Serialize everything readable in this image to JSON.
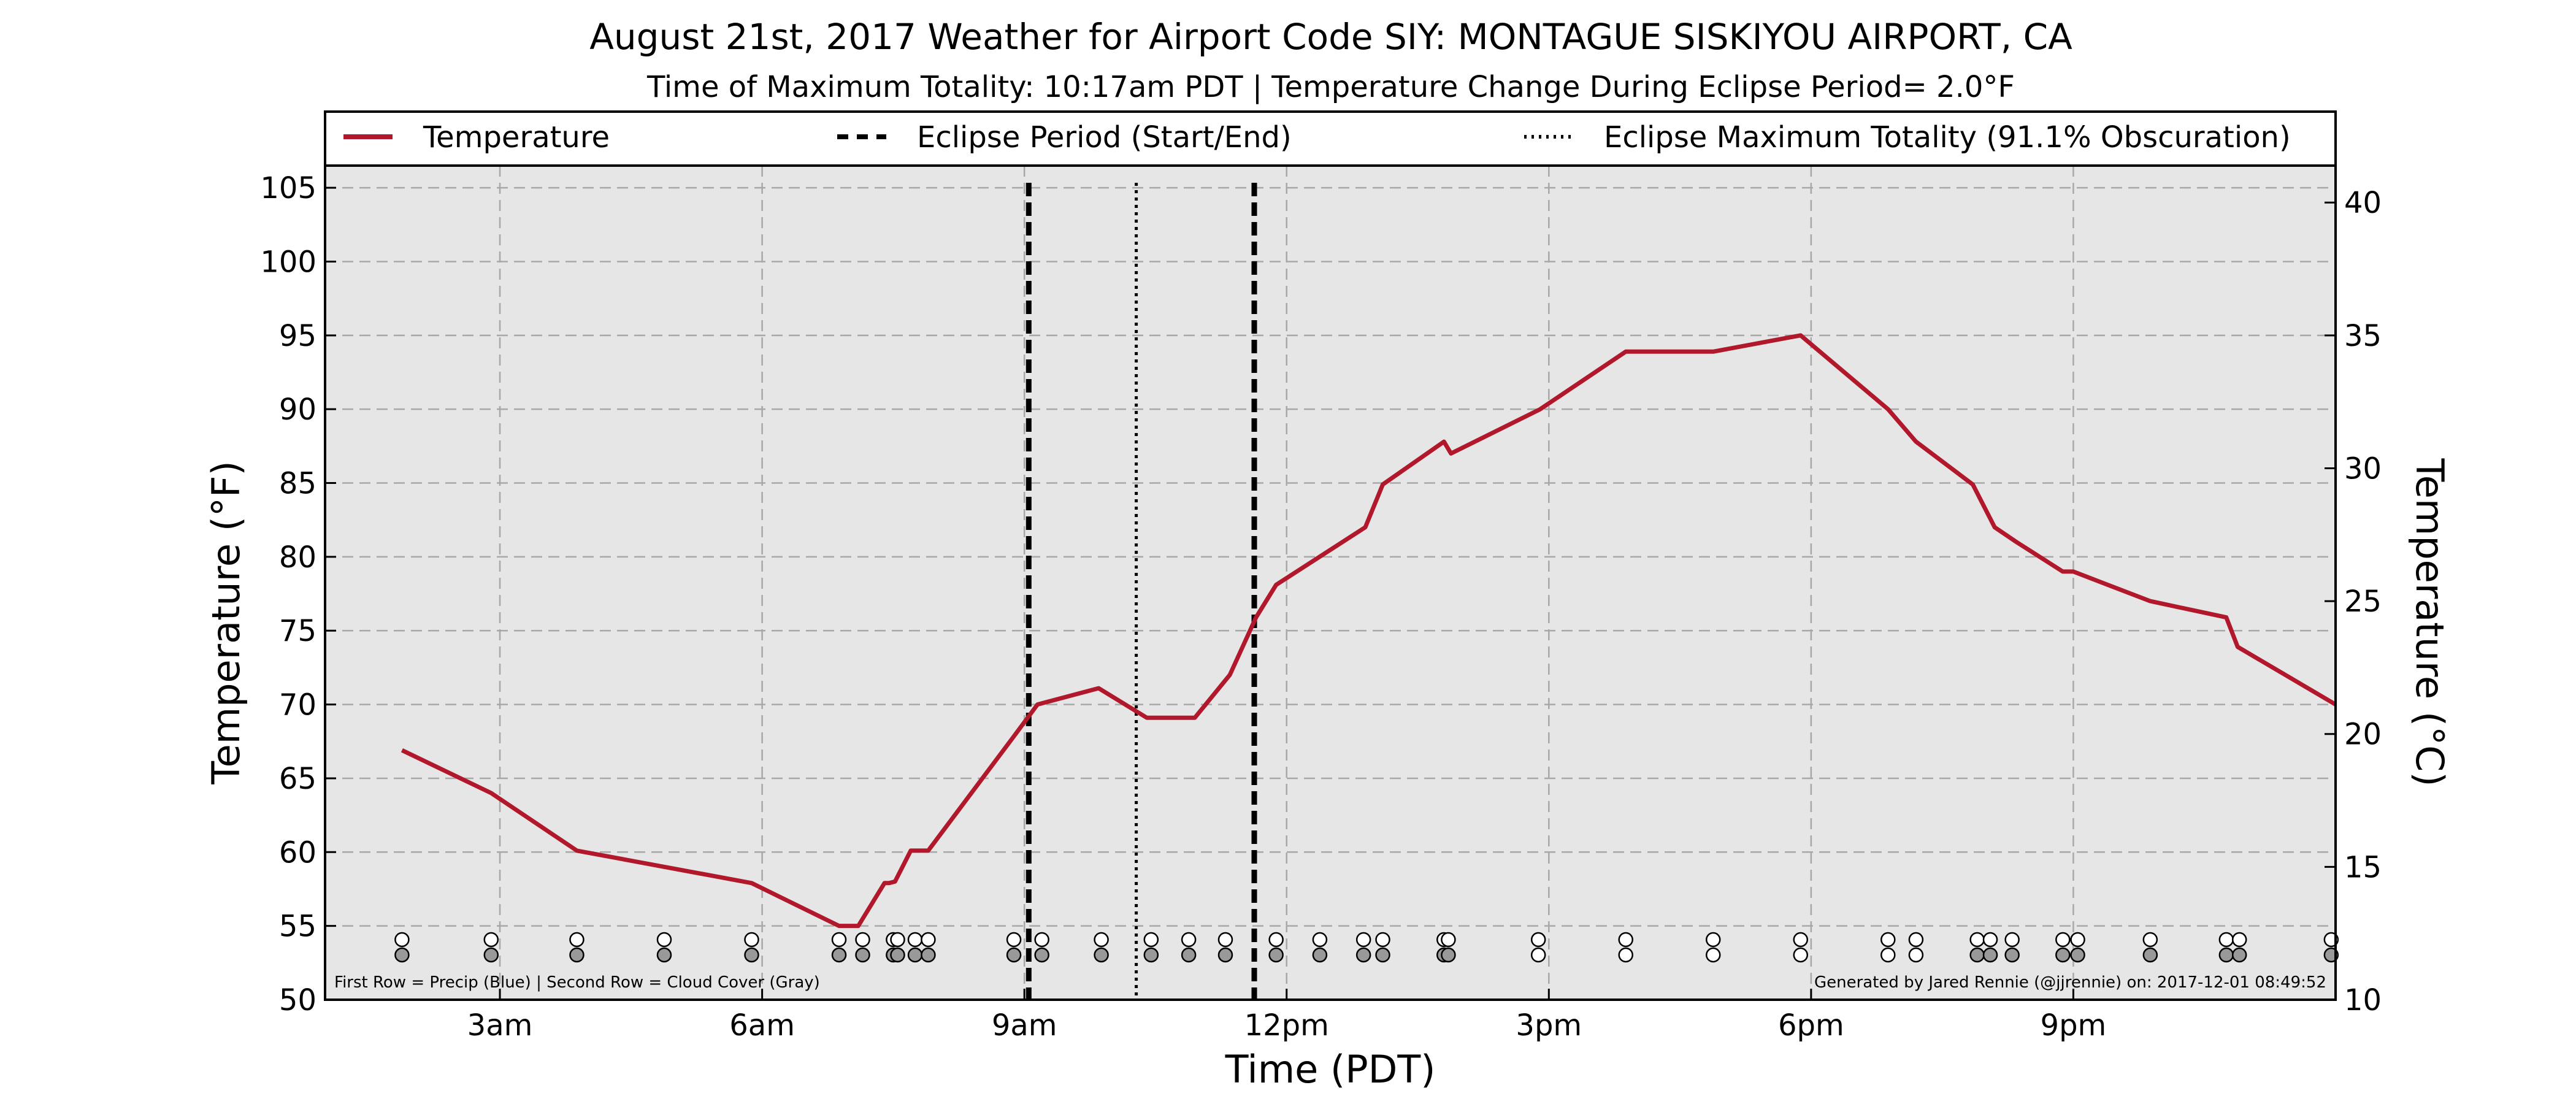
{
  "chart_data": {
    "type": "line",
    "title": "August 21st, 2017 Weather for Airport Code SIY: MONTAGUE SISKIYOU AIRPORT, CA",
    "subtitle": "Time of Maximum Totality: 10:17am PDT | Temperature Change During Eclipse Period= 2.0°F",
    "xlabel": "Time (PDT)",
    "ylabel": "Temperature (°F)",
    "ylabel_right": "Temperature (°C)",
    "xlim": [
      1.0,
      24.0
    ],
    "ylim": [
      50,
      106.5
    ],
    "ylim_right_c": [
      10,
      41.39
    ],
    "xticks": [
      {
        "value": 3,
        "label": "3am"
      },
      {
        "value": 6,
        "label": "6am"
      },
      {
        "value": 9,
        "label": "9am"
      },
      {
        "value": 12,
        "label": "12pm"
      },
      {
        "value": 15,
        "label": "3pm"
      },
      {
        "value": 18,
        "label": "6pm"
      },
      {
        "value": 21,
        "label": "9pm"
      }
    ],
    "yticks": [
      50,
      55,
      60,
      65,
      70,
      75,
      80,
      85,
      90,
      95,
      100,
      105
    ],
    "yticks_right": [
      10,
      15,
      20,
      25,
      30,
      35,
      40
    ],
    "grid": true,
    "legend_position": "top",
    "legend": [
      {
        "label": "Temperature",
        "style": "solid"
      },
      {
        "label": "Eclipse Period (Start/End)",
        "style": "dashed"
      },
      {
        "label": "Eclipse Maximum Totality (91.1% Obscuration)",
        "style": "dotted"
      }
    ],
    "colors": {
      "temperature": "#b2182b",
      "plot_background": "#e6e6e6",
      "cloud_fill": "#999999",
      "precip_fill": "#ffffff"
    },
    "series": [
      {
        "name": "Temperature",
        "x": [
          1.88,
          2.9,
          3.88,
          5.88,
          6.88,
          7.1,
          7.4,
          7.45,
          7.52,
          7.7,
          7.9,
          8.9,
          9.15,
          9.85,
          10.4,
          10.95,
          11.35,
          11.65,
          11.88,
          12.9,
          13.1,
          13.8,
          13.88,
          14.9,
          15.88,
          16.88,
          17.88,
          18.88,
          19.2,
          19.85,
          20.1,
          20.35,
          20.88,
          21.0,
          21.88,
          22.75,
          22.88,
          24.0
        ],
        "y": [
          66.9,
          64.0,
          60.1,
          57.9,
          55.0,
          55.0,
          57.9,
          57.9,
          58.0,
          60.1,
          60.1,
          68.0,
          70.0,
          71.1,
          69.1,
          69.1,
          72.0,
          75.9,
          78.1,
          82.0,
          84.9,
          87.8,
          87.0,
          90.0,
          93.9,
          93.9,
          95.0,
          90.0,
          87.8,
          84.9,
          82.0,
          81.0,
          79.0,
          79.0,
          77.0,
          75.9,
          73.9,
          70.0
        ]
      }
    ],
    "eclipse_period": {
      "start": 9.05,
      "end": 11.63
    },
    "eclipse_max": 10.28,
    "observation_rows": {
      "precip_times": [
        1.88,
        2.9,
        3.88,
        4.88,
        5.88,
        6.88,
        7.15,
        7.5,
        7.55,
        7.75,
        7.9,
        8.88,
        9.2,
        9.88,
        10.45,
        10.88,
        11.3,
        11.88,
        12.38,
        12.88,
        13.1,
        13.8,
        13.85,
        14.88,
        15.88,
        16.88,
        17.88,
        18.88,
        19.2,
        19.9,
        20.05,
        20.3,
        20.88,
        21.05,
        21.88,
        22.75,
        22.9,
        23.95
      ],
      "cloud_times_gray": [
        1.88,
        2.9,
        3.88,
        4.88,
        5.88,
        6.88,
        7.15,
        7.5,
        7.55,
        7.75,
        7.9,
        8.88,
        9.2,
        9.88,
        10.45,
        10.88,
        11.3,
        11.88,
        12.38,
        12.88,
        13.1,
        13.8,
        13.85,
        19.9,
        20.05,
        20.3,
        20.88,
        21.05,
        21.88,
        22.75,
        22.9,
        23.95
      ],
      "cloud_times_clear": [
        14.88,
        15.88,
        16.88,
        17.88,
        18.88,
        19.2
      ]
    },
    "annotations": {
      "left": "First Row = Precip (Blue) | Second Row = Cloud Cover (Gray)",
      "right": "Generated by Jared Rennie (@jjrennie) on: 2017-12-01 08:49:52"
    }
  }
}
